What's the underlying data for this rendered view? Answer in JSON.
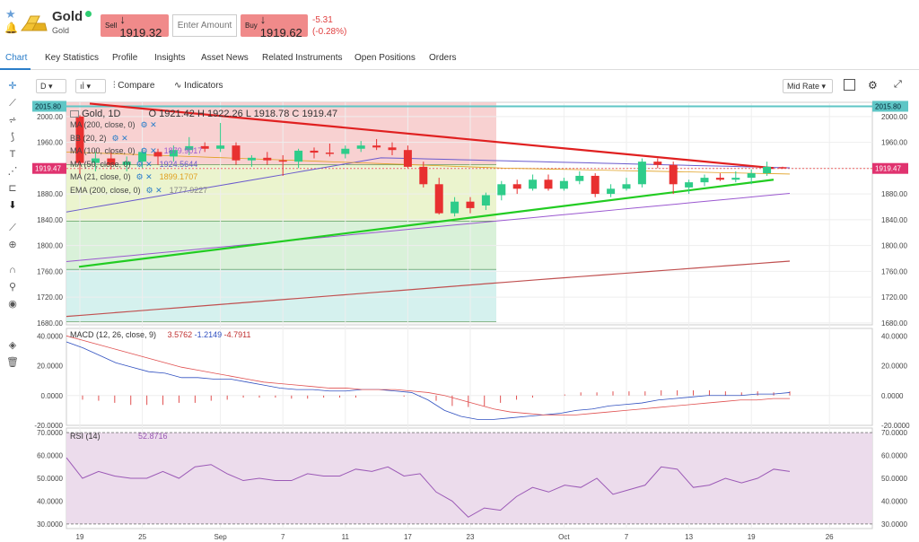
{
  "header": {
    "title": "Gold",
    "subtitle": "Gold",
    "sell_label": "Sell",
    "sell_price": "↓ 1919.32",
    "amount_placeholder": "Enter Amount",
    "buy_label": "Buy",
    "buy_price": "↓ 1919.62",
    "change_abs": "-5.31",
    "change_pct": "(-0.28%)"
  },
  "tabs": [
    "Chart",
    "Key Statistics",
    "Profile",
    "Insights",
    "Asset News",
    "Related Instruments",
    "Open Positions",
    "Orders"
  ],
  "toolbar": {
    "interval": "D",
    "compare_label": "Compare",
    "indicators_label": "Indicators",
    "rate_label": "Mid Rate"
  },
  "sidebar_icons": [
    "crosshair-icon",
    "line-icon",
    "fib-icon",
    "brush-icon",
    "text-icon",
    "pattern-icon",
    "fork-icon",
    "arrow-down-icon",
    "ruler-icon",
    "zoom-icon",
    "magnet-icon",
    "lock-draw-icon",
    "eye-icon",
    "layers-icon",
    "trash-icon"
  ],
  "chart_data": {
    "type": "candlestick",
    "instrument": "Gold, 1D",
    "ohlc_legend": {
      "open": "O 1921.42",
      "high": "H 1922.26",
      "low": "L 1918.78",
      "close": "C 1919.47"
    },
    "price_ticks": [
      "2000.00",
      "1960.00",
      "1920.00",
      "1880.00",
      "1840.00",
      "1800.00",
      "1760.00",
      "1720.00",
      "1680.00"
    ],
    "price_tick_values": [
      2000,
      1960,
      1920,
      1880,
      1840,
      1800,
      1760,
      1720,
      1680
    ],
    "y_range": [
      1677,
      2022
    ],
    "high_marker": "2015.80",
    "high_marker_value": 2015.8,
    "current_marker": "1919.47",
    "current_marker_value": 1919.47,
    "date_ticks": [
      {
        "label": "19",
        "i": 0
      },
      {
        "label": "25",
        "i": 4
      },
      {
        "label": "Sep",
        "i": 9
      },
      {
        "label": "7",
        "i": 13
      },
      {
        "label": "11",
        "i": 17
      },
      {
        "label": "17",
        "i": 21
      },
      {
        "label": "23",
        "i": 25
      },
      {
        "label": "Oct",
        "i": 31
      },
      {
        "label": "7",
        "i": 35
      },
      {
        "label": "13",
        "i": 39
      },
      {
        "label": "19",
        "i": 43
      },
      {
        "label": "26",
        "i": 48
      }
    ],
    "candles": [
      {
        "o": 2000,
        "h": 2002,
        "l": 1910,
        "c": 1928
      },
      {
        "o": 1928,
        "h": 1945,
        "l": 1915,
        "c": 1935
      },
      {
        "o": 1935,
        "h": 1948,
        "l": 1918,
        "c": 1925
      },
      {
        "o": 1925,
        "h": 1938,
        "l": 1915,
        "c": 1930
      },
      {
        "o": 1930,
        "h": 1950,
        "l": 1920,
        "c": 1945
      },
      {
        "o": 1945,
        "h": 1950,
        "l": 1925,
        "c": 1938
      },
      {
        "o": 1938,
        "h": 1955,
        "l": 1930,
        "c": 1948
      },
      {
        "o": 1948,
        "h": 1968,
        "l": 1940,
        "c": 1954
      },
      {
        "o": 1954,
        "h": 1960,
        "l": 1945,
        "c": 1950
      },
      {
        "o": 1950,
        "h": 1990,
        "l": 1945,
        "c": 1955
      },
      {
        "o": 1955,
        "h": 1960,
        "l": 1925,
        "c": 1932
      },
      {
        "o": 1932,
        "h": 1940,
        "l": 1922,
        "c": 1936
      },
      {
        "o": 1936,
        "h": 1945,
        "l": 1925,
        "c": 1932
      },
      {
        "o": 1932,
        "h": 1940,
        "l": 1908,
        "c": 1930
      },
      {
        "o": 1930,
        "h": 1950,
        "l": 1920,
        "c": 1947
      },
      {
        "o": 1947,
        "h": 1952,
        "l": 1935,
        "c": 1944
      },
      {
        "o": 1944,
        "h": 1958,
        "l": 1938,
        "c": 1942
      },
      {
        "o": 1942,
        "h": 1955,
        "l": 1935,
        "c": 1950
      },
      {
        "o": 1950,
        "h": 1962,
        "l": 1945,
        "c": 1955
      },
      {
        "o": 1955,
        "h": 1965,
        "l": 1948,
        "c": 1952
      },
      {
        "o": 1952,
        "h": 1960,
        "l": 1940,
        "c": 1948
      },
      {
        "o": 1948,
        "h": 1955,
        "l": 1920,
        "c": 1922
      },
      {
        "o": 1922,
        "h": 1930,
        "l": 1890,
        "c": 1895
      },
      {
        "o": 1895,
        "h": 1905,
        "l": 1848,
        "c": 1850
      },
      {
        "o": 1850,
        "h": 1875,
        "l": 1845,
        "c": 1868
      },
      {
        "o": 1868,
        "h": 1875,
        "l": 1850,
        "c": 1858
      },
      {
        "o": 1862,
        "h": 1882,
        "l": 1855,
        "c": 1878
      },
      {
        "o": 1878,
        "h": 1900,
        "l": 1870,
        "c": 1895
      },
      {
        "o": 1895,
        "h": 1902,
        "l": 1880,
        "c": 1888
      },
      {
        "o": 1888,
        "h": 1910,
        "l": 1885,
        "c": 1902
      },
      {
        "o": 1902,
        "h": 1910,
        "l": 1885,
        "c": 1888
      },
      {
        "o": 1888,
        "h": 1905,
        "l": 1885,
        "c": 1900
      },
      {
        "o": 1900,
        "h": 1915,
        "l": 1895,
        "c": 1908
      },
      {
        "o": 1908,
        "h": 1912,
        "l": 1875,
        "c": 1880
      },
      {
        "o": 1880,
        "h": 1895,
        "l": 1875,
        "c": 1888
      },
      {
        "o": 1888,
        "h": 1905,
        "l": 1885,
        "c": 1895
      },
      {
        "o": 1895,
        "h": 1935,
        "l": 1890,
        "c": 1930
      },
      {
        "o": 1930,
        "h": 1935,
        "l": 1920,
        "c": 1925
      },
      {
        "o": 1925,
        "h": 1930,
        "l": 1880,
        "c": 1895
      },
      {
        "o": 1890,
        "h": 1902,
        "l": 1880,
        "c": 1898
      },
      {
        "o": 1898,
        "h": 1910,
        "l": 1892,
        "c": 1905
      },
      {
        "o": 1905,
        "h": 1912,
        "l": 1900,
        "c": 1902
      },
      {
        "o": 1902,
        "h": 1915,
        "l": 1898,
        "c": 1905
      },
      {
        "o": 1905,
        "h": 1918,
        "l": 1895,
        "c": 1912
      },
      {
        "o": 1912,
        "h": 1930,
        "l": 1908,
        "c": 1922
      },
      {
        "o": 1921.42,
        "h": 1922.26,
        "l": 1918.78,
        "c": 1919.47
      }
    ],
    "indicators": [
      {
        "name": "MA (200, close, 0)",
        "value": "",
        "color": "#c05050"
      },
      {
        "name": "BB (20, 2)",
        "value": "",
        "color": "#888888"
      },
      {
        "name": "MA (100, close, 0)",
        "value": "1879.9017",
        "color": "#9b59d0"
      },
      {
        "name": "MA (50, close, 0)",
        "value": "1924.5644",
        "color": "#6a5acd"
      },
      {
        "name": "MA (21, close, 0)",
        "value": "1899.1707",
        "color": "#e0a020"
      },
      {
        "name": "EMA (200, close, 0)",
        "value": "1777.9227",
        "color": "#888888"
      }
    ],
    "macd": {
      "label": "MACD (12, 26, close, 9)",
      "values": [
        "3.5762",
        "-1.2149",
        "-4.7911"
      ],
      "ticks": [
        "40.0000",
        "20.0000",
        "0.0000",
        "-20.0000"
      ],
      "tick_values": [
        40,
        20,
        0,
        -20
      ],
      "range": [
        -20,
        45
      ]
    },
    "rsi": {
      "label": "RSI (14)",
      "value": "52.8716",
      "ticks": [
        "70.0000",
        "60.0000",
        "50.0000",
        "40.0000",
        "30.0000"
      ],
      "tick_values": [
        70,
        60,
        50,
        40,
        30
      ],
      "range": [
        28,
        72
      ],
      "series": [
        59,
        50,
        53,
        51,
        50,
        50,
        53,
        50,
        55,
        56,
        52,
        49,
        50,
        49,
        49,
        52,
        51,
        51,
        54,
        53,
        55,
        51,
        52,
        44,
        40,
        33,
        37,
        36,
        42,
        46,
        44,
        47,
        46,
        50,
        43,
        45,
        47,
        55,
        54,
        46,
        47,
        50,
        48,
        50,
        54,
        53
      ]
    }
  }
}
